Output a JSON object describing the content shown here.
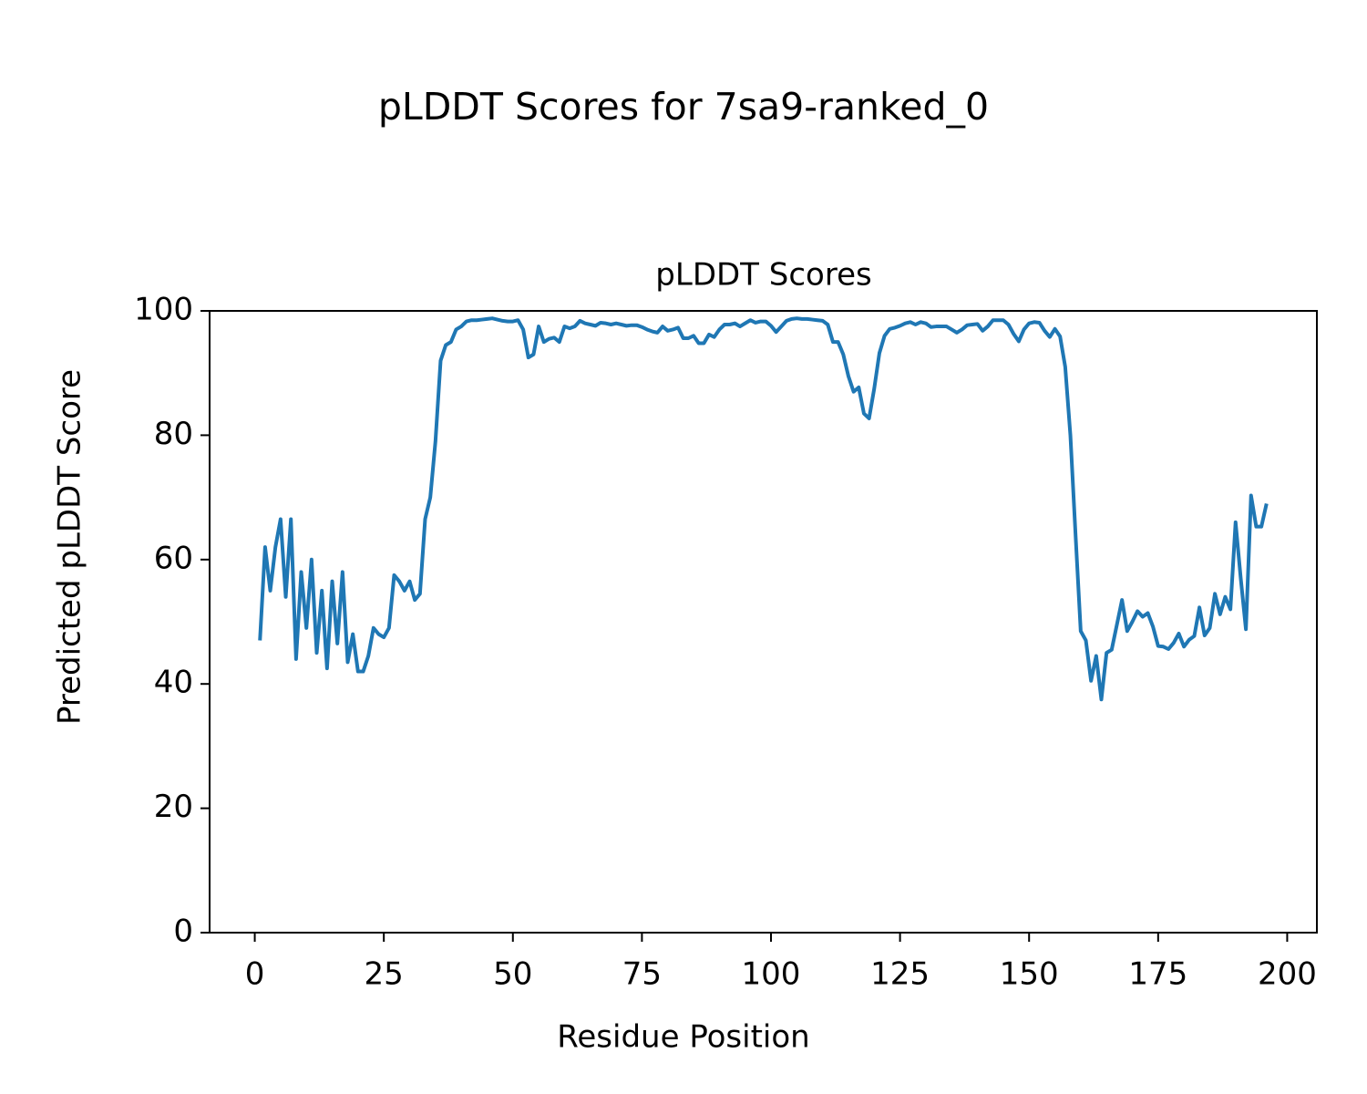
{
  "chart_data": {
    "type": "line",
    "suptitle": "pLDDT Scores for 7sa9-ranked_0",
    "title": "pLDDT Scores",
    "xlabel": "Residue Position",
    "ylabel": "Predicted pLDDT Score",
    "color": "#1f77b4",
    "x": [
      1,
      2,
      3,
      4,
      5,
      6,
      7,
      8,
      9,
      10,
      11,
      12,
      13,
      14,
      15,
      16,
      17,
      18,
      19,
      20,
      21,
      22,
      23,
      24,
      25,
      26,
      27,
      28,
      29,
      30,
      31,
      32,
      33,
      34,
      35,
      36,
      37,
      38,
      39,
      40,
      41,
      42,
      43,
      44,
      45,
      46,
      47,
      48,
      49,
      50,
      51,
      52,
      53,
      54,
      55,
      56,
      57,
      58,
      59,
      60,
      61,
      62,
      63,
      64,
      65,
      66,
      67,
      68,
      69,
      70,
      71,
      72,
      73,
      74,
      75,
      76,
      77,
      78,
      79,
      80,
      81,
      82,
      83,
      84,
      85,
      86,
      87,
      88,
      89,
      90,
      91,
      92,
      93,
      94,
      95,
      96,
      97,
      98,
      99,
      100,
      101,
      102,
      103,
      104,
      105,
      106,
      107,
      108,
      109,
      110,
      111,
      112,
      113,
      114,
      115,
      116,
      117,
      118,
      119,
      120,
      121,
      122,
      123,
      124,
      125,
      126,
      127,
      128,
      129,
      130,
      131,
      132,
      133,
      134,
      135,
      136,
      137,
      138,
      139,
      140,
      141,
      142,
      143,
      144,
      145,
      146,
      147,
      148,
      149,
      150,
      151,
      152,
      153,
      154,
      155,
      156,
      157,
      158,
      159,
      160,
      161,
      162,
      163,
      164,
      165,
      166,
      167,
      168,
      169,
      170,
      171,
      172,
      173,
      174,
      175,
      176,
      177,
      178,
      179,
      180,
      181,
      182,
      183,
      184,
      185,
      186,
      187,
      188,
      189,
      190,
      191,
      192,
      193,
      194,
      195,
      196
    ],
    "values": [
      47,
      62,
      55,
      62,
      66.5,
      54,
      66.5,
      44,
      58,
      49,
      60,
      45,
      55,
      42.5,
      56.5,
      46.5,
      58,
      43.5,
      48,
      42,
      42,
      44.5,
      49,
      48,
      47.5,
      49,
      57.5,
      56.5,
      55,
      56.5,
      53.5,
      54.5,
      66.5,
      70,
      79,
      92,
      94.5,
      95,
      97,
      97.5,
      98.3,
      98.5,
      98.5,
      98.6,
      98.7,
      98.8,
      98.6,
      98.4,
      98.3,
      98.3,
      98.5,
      97,
      92.5,
      93,
      97.5,
      95,
      95.5,
      95.7,
      95,
      97.5,
      97.2,
      97.5,
      98.4,
      98,
      97.8,
      97.6,
      98.1,
      98,
      97.8,
      98,
      97.8,
      97.6,
      97.7,
      97.7,
      97.4,
      97,
      96.7,
      96.5,
      97.5,
      96.8,
      97,
      97.3,
      95.6,
      95.6,
      96,
      94.8,
      94.8,
      96.2,
      95.8,
      97,
      97.8,
      97.8,
      98,
      97.5,
      98,
      98.5,
      98.1,
      98.3,
      98.3,
      97.6,
      96.6,
      97.5,
      98.4,
      98.7,
      98.8,
      98.7,
      98.7,
      98.6,
      98.5,
      98.4,
      97.8,
      95,
      95,
      93,
      89.5,
      87,
      87.7,
      83.5,
      82.7,
      87.5,
      93.2,
      96,
      97.1,
      97.3,
      97.6,
      98,
      98.2,
      97.8,
      98.2,
      98,
      97.4,
      97.5,
      97.5,
      97.5,
      97,
      96.5,
      97,
      97.7,
      97.8,
      97.9,
      96.8,
      97.5,
      98.5,
      98.5,
      98.5,
      97.8,
      96.3,
      95.1,
      97,
      98,
      98.2,
      98.1,
      96.8,
      95.8,
      97.1,
      95.9,
      91,
      80,
      64,
      48.5,
      47,
      40.5,
      44.5,
      37.5,
      45,
      45.5,
      49.5,
      53.5,
      48.5,
      50,
      51.7,
      50.8,
      51.4,
      49.2,
      46.1,
      46,
      45.6,
      46.6,
      48.1,
      46,
      47.1,
      47.7,
      52.3,
      47.8,
      49,
      54.5,
      51.2,
      54,
      52,
      66,
      57,
      48.8,
      70.3,
      65.3,
      65.3,
      69
    ],
    "xlim": [
      -8.75,
      205.75
    ],
    "ylim": [
      0,
      100
    ],
    "xticks": [
      0,
      25,
      50,
      75,
      100,
      125,
      150,
      175,
      200
    ],
    "yticks": [
      0,
      20,
      40,
      60,
      80,
      100
    ],
    "grid": false
  }
}
